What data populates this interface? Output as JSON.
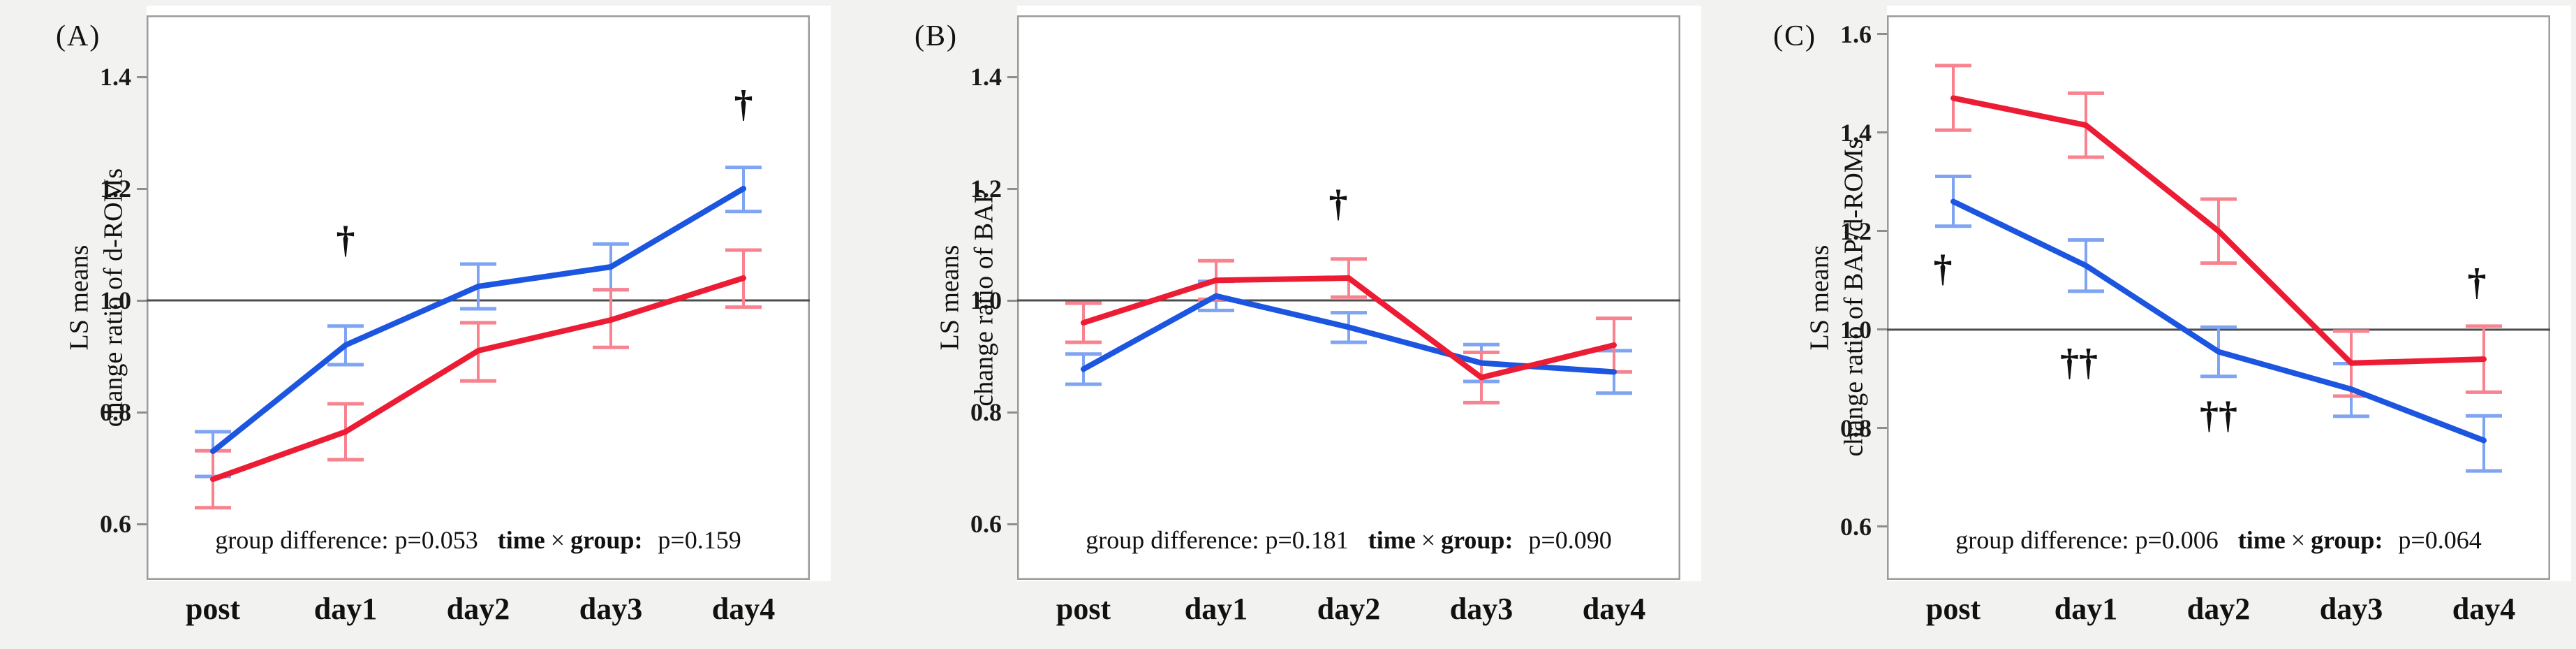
{
  "figure": {
    "background_color": "#f2f2f0",
    "plot_background_color": "#ffffff",
    "frame_color": "#9b9b9b",
    "reference_line_color": "#4d4d4d",
    "tick_mark_color": "#8e8e8e",
    "text_color": "#111111",
    "annotation_color": "#111111"
  },
  "chart_data": [
    {
      "type": "line",
      "panel_label": "(A)",
      "ylabel_line1": "LS means",
      "ylabel_line2": "change ratio of d-ROMs",
      "categories": [
        "post",
        "day1",
        "day2",
        "day3",
        "day4"
      ],
      "x_positions": [
        0.1,
        0.3,
        0.5,
        0.7,
        0.9
      ],
      "yticks": [
        0.6,
        0.8,
        1.0,
        1.2,
        1.4
      ],
      "ylim": [
        0.5,
        1.51
      ],
      "reference_y": 1.0,
      "grid": false,
      "legend": "none",
      "series": [
        {
          "name": "blue group",
          "color": "#1c55e0",
          "error_color": "#7ea4f2",
          "values": [
            0.73,
            0.92,
            1.025,
            1.06,
            1.2
          ],
          "err_low": [
            0.685,
            0.885,
            0.985,
            1.019,
            1.159
          ],
          "err_high": [
            0.765,
            0.954,
            1.065,
            1.101,
            1.238
          ]
        },
        {
          "name": "red group",
          "color": "#ec1c34",
          "error_color": "#f8828e",
          "values": [
            0.68,
            0.765,
            0.91,
            0.965,
            1.04
          ],
          "err_low": [
            0.629,
            0.715,
            0.856,
            0.916,
            0.988
          ],
          "err_high": [
            0.731,
            0.815,
            0.96,
            1.019,
            1.09
          ]
        }
      ],
      "annotations": [
        {
          "symbol": "†",
          "category_index": 1,
          "y": 1.11,
          "dx": 0
        },
        {
          "symbol": "†",
          "category_index": 4,
          "y": 1.353,
          "dx": 0
        }
      ],
      "stats": {
        "group_difference": "group difference: p=0.053",
        "time_label": "time",
        "times_sign": "×",
        "group_label": "group:",
        "time_group_p": "p=0.159"
      }
    },
    {
      "type": "line",
      "panel_label": "(B)",
      "ylabel_line1": "LS means",
      "ylabel_line2": "change ratio of BAP",
      "categories": [
        "post",
        "day1",
        "day2",
        "day3",
        "day4"
      ],
      "x_positions": [
        0.1,
        0.3,
        0.5,
        0.7,
        0.9
      ],
      "yticks": [
        0.6,
        0.8,
        1.0,
        1.2,
        1.4
      ],
      "ylim": [
        0.5,
        1.51
      ],
      "reference_y": 1.0,
      "grid": false,
      "legend": "none",
      "series": [
        {
          "name": "blue group",
          "color": "#1c55e0",
          "error_color": "#7ea4f2",
          "values": [
            0.877,
            1.008,
            0.952,
            0.888,
            0.872
          ],
          "err_low": [
            0.85,
            0.982,
            0.925,
            0.855,
            0.834
          ],
          "err_high": [
            0.904,
            1.034,
            0.978,
            0.921,
            0.91
          ]
        },
        {
          "name": "red group",
          "color": "#ec1c34",
          "error_color": "#f8828e",
          "values": [
            0.96,
            1.036,
            1.04,
            0.862,
            0.92
          ],
          "err_low": [
            0.925,
            1.002,
            1.006,
            0.817,
            0.872
          ],
          "err_high": [
            0.995,
            1.071,
            1.074,
            0.907,
            0.968
          ]
        }
      ],
      "annotations": [
        {
          "symbol": "†",
          "category_index": 2,
          "y": 1.175,
          "dx": -15
        }
      ],
      "stats": {
        "group_difference": "group difference: p=0.181",
        "time_label": "time",
        "times_sign": "×",
        "group_label": "group:",
        "time_group_p": "p=0.090"
      }
    },
    {
      "type": "line",
      "panel_label": "(C)",
      "ylabel_line1": "LS means",
      "ylabel_line2": "change ratio of BAP/d-ROMs",
      "categories": [
        "post",
        "day1",
        "day2",
        "day3",
        "day4"
      ],
      "x_positions": [
        0.1,
        0.3,
        0.5,
        0.7,
        0.9
      ],
      "yticks": [
        0.6,
        0.8,
        1.0,
        1.2,
        1.4,
        1.6
      ],
      "ylim": [
        0.492,
        1.638
      ],
      "reference_y": 1.0,
      "grid": false,
      "legend": "none",
      "series": [
        {
          "name": "blue group",
          "color": "#1c55e0",
          "error_color": "#7ea4f2",
          "values": [
            1.26,
            1.13,
            0.955,
            0.879,
            0.775
          ],
          "err_low": [
            1.21,
            1.078,
            0.905,
            0.824,
            0.713
          ],
          "err_high": [
            1.311,
            1.182,
            1.005,
            0.931,
            0.825
          ]
        },
        {
          "name": "red group",
          "color": "#ec1c34",
          "error_color": "#f8828e",
          "values": [
            1.47,
            1.415,
            1.2,
            0.932,
            0.94
          ],
          "err_low": [
            1.405,
            1.35,
            1.135,
            0.865,
            0.873
          ],
          "err_high": [
            1.536,
            1.48,
            1.265,
            0.997,
            1.007
          ]
        }
      ],
      "annotations": [
        {
          "symbol": "†",
          "category_index": 0,
          "y": 1.126,
          "dx": -15
        },
        {
          "symbol": "††",
          "category_index": 1,
          "y": 0.935,
          "dx": -10
        },
        {
          "symbol": "††",
          "category_index": 2,
          "y": 0.828,
          "dx": 0
        },
        {
          "symbol": "†",
          "category_index": 4,
          "y": 1.098,
          "dx": -10
        }
      ],
      "stats": {
        "group_difference": "group difference: p=0.006",
        "time_label": "time",
        "times_sign": "×",
        "group_label": "group:",
        "time_group_p": "p=0.064"
      }
    }
  ]
}
